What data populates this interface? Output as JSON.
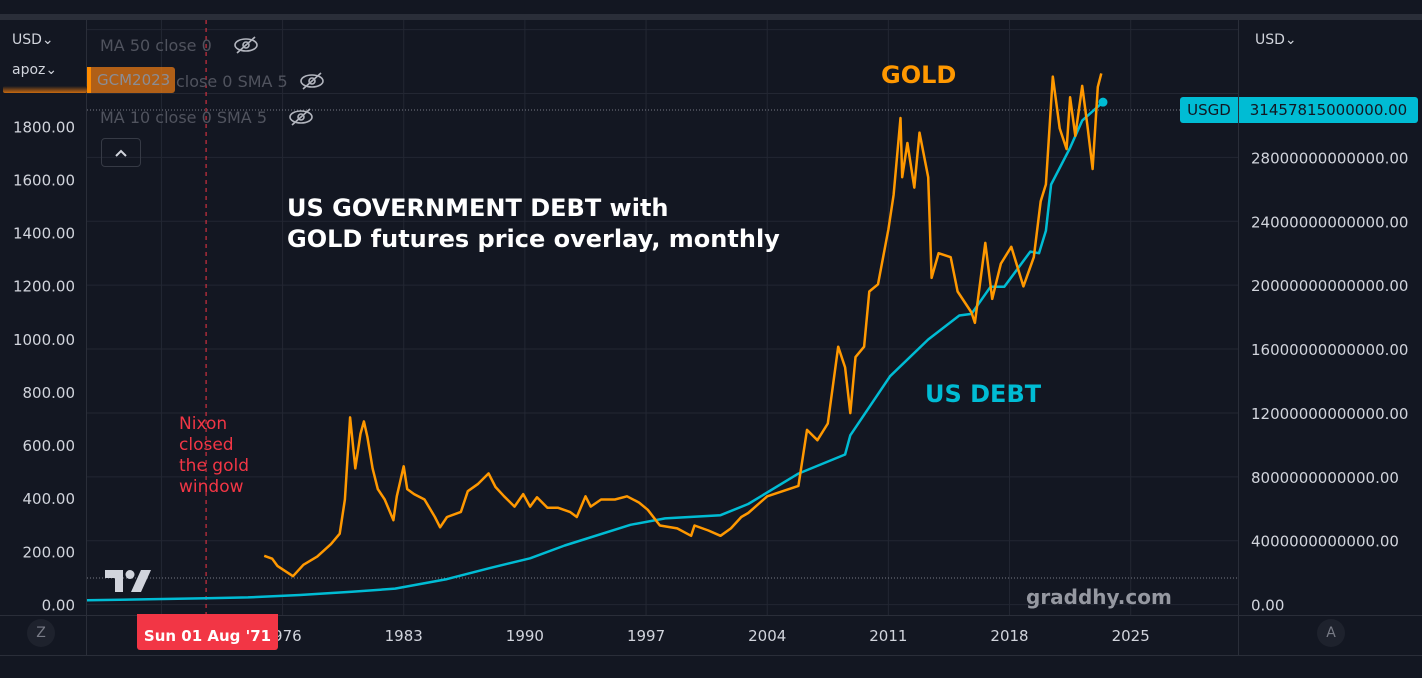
{
  "header": {
    "left_currency": "USD⌄",
    "left_scale_name": "apoz⌄",
    "right_currency": "USD⌄"
  },
  "legend": {
    "symbol": "GCM2023",
    "indicators": [
      {
        "label": "MA 50 close 0",
        "icon": "eye-slash-icon",
        "hidden": true
      },
      {
        "label": "close 0 SMA 5",
        "icon": "eye-slash-icon",
        "hidden": true
      },
      {
        "label": "MA 10 close 0 SMA 5",
        "icon": "eye-slash-icon",
        "hidden": true
      }
    ],
    "collapse_icon": "chevron-up-icon"
  },
  "annotations": {
    "title_line1": "US GOVERNMENT DEBT with",
    "title_line2": "GOLD futures price overlay, monthly",
    "gold_label": "GOLD",
    "debt_label": "US DEBT",
    "nixon_lines": [
      "Nixon",
      "closed",
      "the gold",
      "window"
    ],
    "watermark": "graddhy.com"
  },
  "price_label": {
    "symbol": "USGD",
    "value": "31457815000000.00"
  },
  "crosshair": {
    "date_label": "Sun 01 Aug '71",
    "year": 1971.58
  },
  "bottom_axis": {
    "left_button": "Z",
    "right_button": "A"
  },
  "colors": {
    "background": "#131722",
    "gold": "#ff9800",
    "debt": "#00bcd4",
    "crosshair": "#f23645",
    "grid": "#232733"
  },
  "chart_data": {
    "type": "line",
    "x_ticks": [
      "1976",
      "1983",
      "1990",
      "1997",
      "2004",
      "2011",
      "2018",
      "2025"
    ],
    "xlim": [
      1964.7,
      2031.2
    ],
    "left_axis": {
      "ticks": [
        "0.00",
        "200.00",
        "400.00",
        "600.00",
        "800.00",
        "1000.00",
        "1200.00",
        "1400.00",
        "1600.00",
        "1800.00"
      ],
      "ylim": [
        -40,
        2200
      ]
    },
    "right_axis": {
      "ticks": [
        "0.00",
        "4000000000000.00",
        "8000000000000.00",
        "12000000000000.00",
        "16000000000000.00",
        "20000000000000.00",
        "24000000000000.00",
        "28000000000000.00"
      ],
      "ylim": [
        -650000000000,
        36600000000000
      ]
    },
    "grid": true,
    "series": [
      {
        "name": "GOLD",
        "axis": "left",
        "color": "#ff9800",
        "points": [
          [
            1974.94,
            183
          ],
          [
            1975.4,
            172
          ],
          [
            1975.7,
            145
          ],
          [
            1976.6,
            106
          ],
          [
            1977.2,
            149
          ],
          [
            1978.0,
            180
          ],
          [
            1978.8,
            227
          ],
          [
            1979.3,
            266
          ],
          [
            1979.6,
            395
          ],
          [
            1979.9,
            704
          ],
          [
            1980.2,
            512
          ],
          [
            1980.5,
            642
          ],
          [
            1980.7,
            689
          ],
          [
            1980.9,
            630
          ],
          [
            1981.2,
            512
          ],
          [
            1981.5,
            434
          ],
          [
            1981.9,
            395
          ],
          [
            1982.4,
            317
          ],
          [
            1982.6,
            407
          ],
          [
            1983.0,
            520
          ],
          [
            1983.2,
            434
          ],
          [
            1983.6,
            415
          ],
          [
            1984.2,
            395
          ],
          [
            1984.8,
            329
          ],
          [
            1985.1,
            290
          ],
          [
            1985.5,
            329
          ],
          [
            1986.3,
            348
          ],
          [
            1986.7,
            426
          ],
          [
            1987.3,
            454
          ],
          [
            1987.9,
            493
          ],
          [
            1988.3,
            442
          ],
          [
            1988.8,
            407
          ],
          [
            1989.4,
            368
          ],
          [
            1989.9,
            415
          ],
          [
            1990.3,
            368
          ],
          [
            1990.7,
            403
          ],
          [
            1991.3,
            364
          ],
          [
            1991.9,
            364
          ],
          [
            1992.6,
            348
          ],
          [
            1993.0,
            329
          ],
          [
            1993.5,
            407
          ],
          [
            1993.8,
            368
          ],
          [
            1994.4,
            395
          ],
          [
            1995.2,
            395
          ],
          [
            1995.9,
            407
          ],
          [
            1996.6,
            383
          ],
          [
            1997.1,
            356
          ],
          [
            1997.8,
            297
          ],
          [
            1998.8,
            286
          ],
          [
            1999.6,
            258
          ],
          [
            1999.8,
            297
          ],
          [
            2000.6,
            278
          ],
          [
            2001.3,
            258
          ],
          [
            2001.9,
            286
          ],
          [
            2002.5,
            329
          ],
          [
            2002.9,
            344
          ],
          [
            2004.0,
            407
          ],
          [
            2005.8,
            446
          ],
          [
            2006.3,
            657
          ],
          [
            2006.9,
            618
          ],
          [
            2007.5,
            681
          ],
          [
            2008.1,
            970
          ],
          [
            2008.5,
            892
          ],
          [
            2008.8,
            720
          ],
          [
            2009.1,
            931
          ],
          [
            2009.6,
            970
          ],
          [
            2009.9,
            1178
          ],
          [
            2010.4,
            1205
          ],
          [
            2011.0,
            1412
          ],
          [
            2011.3,
            1541
          ],
          [
            2011.7,
            1831
          ],
          [
            2011.8,
            1608
          ],
          [
            2012.1,
            1737
          ],
          [
            2012.5,
            1569
          ],
          [
            2012.8,
            1776
          ],
          [
            2013.3,
            1608
          ],
          [
            2013.5,
            1229
          ],
          [
            2013.9,
            1322
          ],
          [
            2014.6,
            1307
          ],
          [
            2015.0,
            1178
          ],
          [
            2015.8,
            1099
          ],
          [
            2016.0,
            1060
          ],
          [
            2016.6,
            1361
          ],
          [
            2017.0,
            1150
          ],
          [
            2017.5,
            1283
          ],
          [
            2018.1,
            1346
          ],
          [
            2018.8,
            1197
          ],
          [
            2019.4,
            1307
          ],
          [
            2019.8,
            1518
          ],
          [
            2020.1,
            1581
          ],
          [
            2020.5,
            1987
          ],
          [
            2020.9,
            1792
          ],
          [
            2021.3,
            1714
          ],
          [
            2021.5,
            1909
          ],
          [
            2021.8,
            1764
          ],
          [
            2022.2,
            1952
          ],
          [
            2022.5,
            1803
          ],
          [
            2022.8,
            1639
          ],
          [
            2023.1,
            1948
          ],
          [
            2023.3,
            1999
          ]
        ]
      },
      {
        "name": "US DEBT",
        "axis": "right",
        "color": "#00bcd4",
        "points": [
          [
            1964.7,
            270000000000.0
          ],
          [
            1971.6,
            400000000000.0
          ],
          [
            1974.0,
            450000000000.0
          ],
          [
            1977.0,
            600000000000.0
          ],
          [
            1980.0,
            800000000000.0
          ],
          [
            1982.5,
            1000000000000.0
          ],
          [
            1985.5,
            1600000000000.0
          ],
          [
            1988.0,
            2300000000000.0
          ],
          [
            1990.3,
            2900000000000.0
          ],
          [
            1992.3,
            3700000000000.0
          ],
          [
            1996.1,
            5000000000000.0
          ],
          [
            1998.1,
            5400000000000.0
          ],
          [
            2001.3,
            5600000000000.0
          ],
          [
            2002.9,
            6300000000000.0
          ],
          [
            2005.8,
            8200000000000.0
          ],
          [
            2008.5,
            9400000000000.0
          ],
          [
            2008.8,
            10600000000000.0
          ],
          [
            2011.1,
            14300000000000.0
          ],
          [
            2013.3,
            16600000000000.0
          ],
          [
            2015.1,
            18100000000000.0
          ],
          [
            2015.8,
            18200000000000.0
          ],
          [
            2016.9,
            19900000000000.0
          ],
          [
            2017.7,
            19900000000000.0
          ],
          [
            2019.2,
            22100000000000.0
          ],
          [
            2019.7,
            22000000000000.0
          ],
          [
            2020.1,
            23400000000000.0
          ],
          [
            2020.4,
            26300000000000.0
          ],
          [
            2021.5,
            28600000000000.0
          ],
          [
            2022.2,
            30300000000000.0
          ],
          [
            2023.4,
            31457815000000.0
          ]
        ]
      }
    ]
  }
}
